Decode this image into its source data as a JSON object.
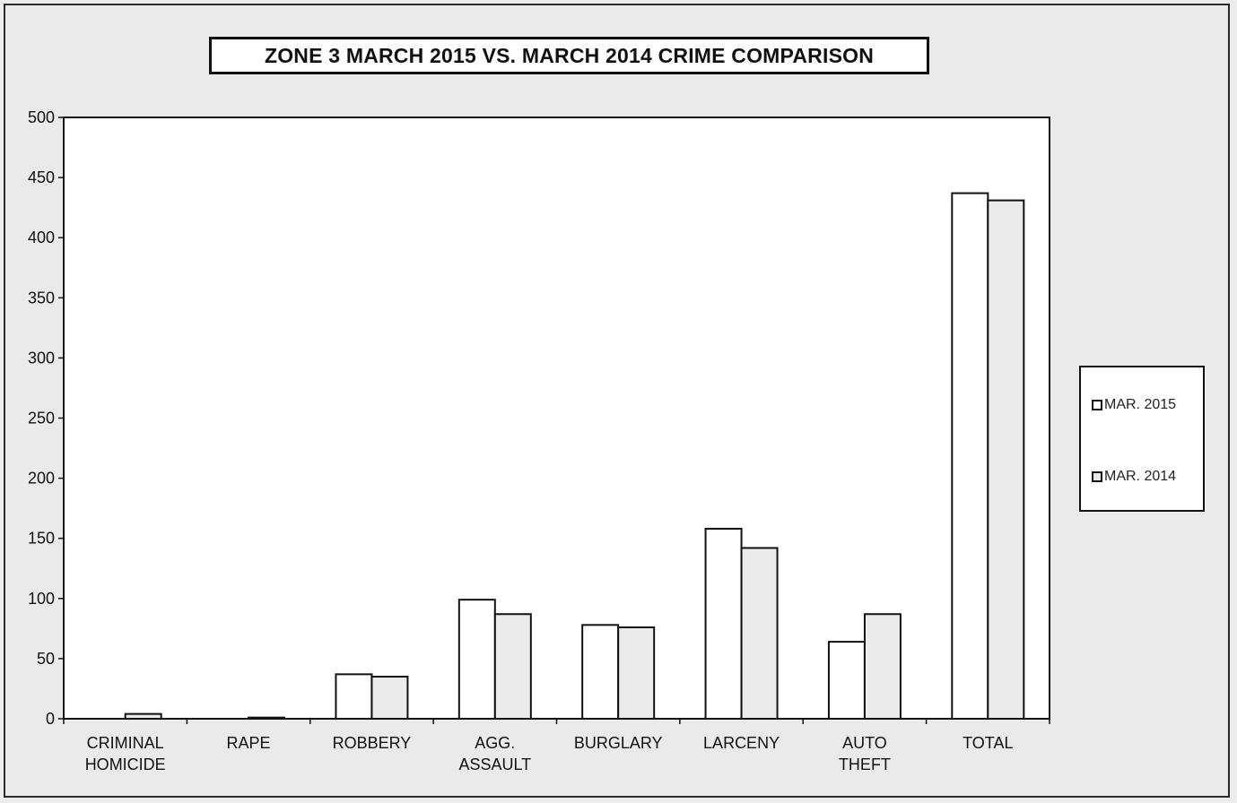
{
  "chart_data": {
    "type": "bar",
    "title": "ZONE 3  MARCH 2015 VS. MARCH 2014 CRIME COMPARISON",
    "categories": [
      [
        "CRIMINAL",
        "HOMICIDE"
      ],
      [
        "RAPE"
      ],
      [
        "ROBBERY"
      ],
      [
        "AGG.",
        "ASSAULT"
      ],
      [
        "BURGLARY"
      ],
      [
        "LARCENY"
      ],
      [
        "AUTO",
        "THEFT"
      ],
      [
        "TOTAL"
      ]
    ],
    "series": [
      {
        "name": "MAR. 2015",
        "values": [
          0,
          0,
          37,
          99,
          78,
          158,
          64,
          437
        ],
        "color": "#ffffff"
      },
      {
        "name": "MAR. 2014",
        "values": [
          4,
          1,
          35,
          87,
          76,
          142,
          87,
          431
        ],
        "color": "#eeeeee"
      }
    ],
    "ylim": [
      0,
      500
    ],
    "yticks": [
      0,
      50,
      100,
      150,
      200,
      250,
      300,
      350,
      400,
      450,
      500
    ],
    "xlabel": "",
    "ylabel": "",
    "grid": false,
    "legend": "right"
  }
}
